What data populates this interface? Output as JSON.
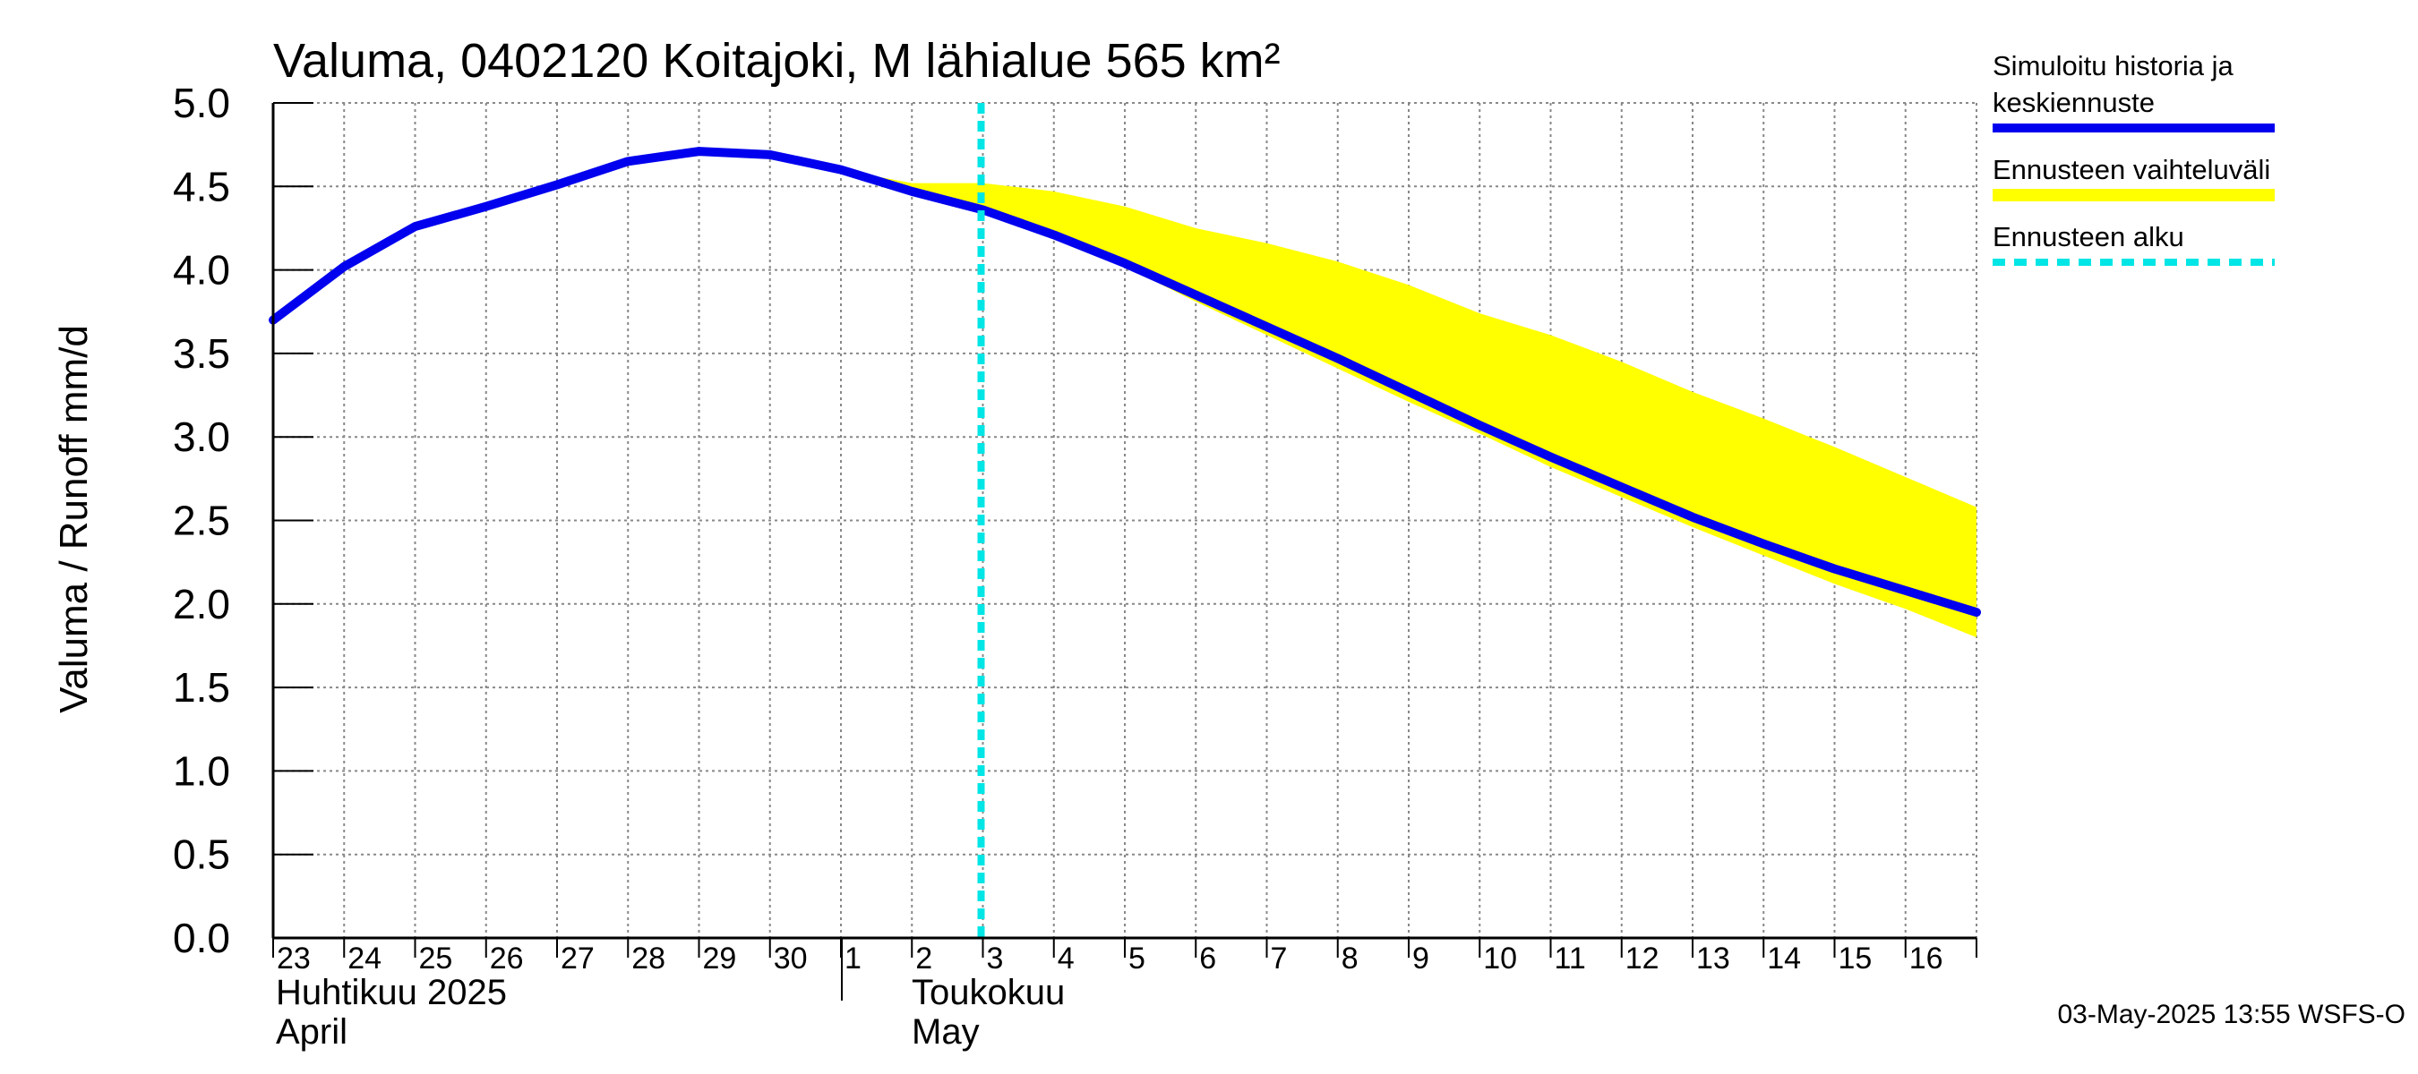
{
  "chart_data": {
    "type": "area",
    "title": "Valuma, 0402120 Koitajoki, M lähialue 565 km²",
    "ylabel": "Valuma / Runoff    mm/d",
    "ylim": [
      0.0,
      5.0
    ],
    "yticks": [
      "0.0",
      "0.5",
      "1.0",
      "1.5",
      "2.0",
      "2.5",
      "3.0",
      "3.5",
      "4.0",
      "4.5",
      "5.0"
    ],
    "xlim": [
      "2025-04-23",
      "2025-05-17"
    ],
    "x_tick_labels": [
      "23",
      "24",
      "25",
      "26",
      "27",
      "28",
      "29",
      "30",
      "1",
      "2",
      "3",
      "4",
      "5",
      "6",
      "7",
      "8",
      "9",
      "10",
      "11",
      "12",
      "13",
      "14",
      "15",
      "16"
    ],
    "month_labels": [
      {
        "line1": "Huhtikuu  2025",
        "line2": "April"
      },
      {
        "line1": "Toukokuu",
        "line2": "May"
      }
    ],
    "grid": true,
    "legend_position": "right",
    "forecast_start": "2025-05-03",
    "series": [
      {
        "name": "Simuloitu historia ja keskiennuste",
        "color": "#0000ee",
        "x": [
          "2025-04-23",
          "2025-04-24",
          "2025-04-25",
          "2025-04-26",
          "2025-04-27",
          "2025-04-28",
          "2025-04-29",
          "2025-04-30",
          "2025-05-01",
          "2025-05-02",
          "2025-05-03",
          "2025-05-04",
          "2025-05-05",
          "2025-05-06",
          "2025-05-07",
          "2025-05-08",
          "2025-05-09",
          "2025-05-10",
          "2025-05-11",
          "2025-05-12",
          "2025-05-13",
          "2025-05-14",
          "2025-05-15",
          "2025-05-16",
          "2025-05-17"
        ],
        "y": [
          3.7,
          4.02,
          4.26,
          4.38,
          4.51,
          4.65,
          4.71,
          4.69,
          4.6,
          4.47,
          4.36,
          4.21,
          4.04,
          3.85,
          3.66,
          3.47,
          3.27,
          3.07,
          2.88,
          2.7,
          2.52,
          2.36,
          2.21,
          2.08,
          1.95
        ]
      },
      {
        "name": "Ennusteen vaihteluväli",
        "color": "#ffff00",
        "x": [
          "2025-05-01",
          "2025-05-02",
          "2025-05-03",
          "2025-05-04",
          "2025-05-05",
          "2025-05-06",
          "2025-05-07",
          "2025-05-08",
          "2025-05-09",
          "2025-05-10",
          "2025-05-11",
          "2025-05-12",
          "2025-05-13",
          "2025-05-14",
          "2025-05-15",
          "2025-05-16",
          "2025-05-17"
        ],
        "upper": [
          4.6,
          4.52,
          4.52,
          4.47,
          4.38,
          4.25,
          4.16,
          4.05,
          3.91,
          3.74,
          3.61,
          3.45,
          3.27,
          3.11,
          2.94,
          2.76,
          2.58
        ],
        "lower": [
          4.6,
          4.47,
          4.35,
          4.19,
          4.02,
          3.81,
          3.61,
          3.41,
          3.21,
          3.02,
          2.82,
          2.64,
          2.46,
          2.29,
          2.12,
          1.97,
          1.8
        ]
      },
      {
        "name": "Ennusteen alku",
        "color": "#00e5e5"
      }
    ]
  },
  "legend": {
    "history_line1": "Simuloitu historia ja",
    "history_line2": "keskiennuste",
    "range": "Ennusteen vaihteluväli",
    "forecast_start": "Ennusteen alku"
  },
  "footer": {
    "timestamp": "03-May-2025 13:55 WSFS-O"
  }
}
